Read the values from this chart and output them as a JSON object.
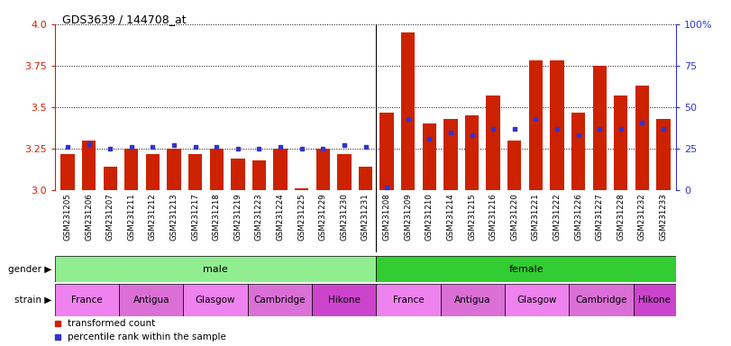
{
  "title": "GDS3639 / 144708_at",
  "samples": [
    "GSM231205",
    "GSM231206",
    "GSM231207",
    "GSM231211",
    "GSM231212",
    "GSM231213",
    "GSM231217",
    "GSM231218",
    "GSM231219",
    "GSM231223",
    "GSM231224",
    "GSM231225",
    "GSM231229",
    "GSM231230",
    "GSM231231",
    "GSM231208",
    "GSM231209",
    "GSM231210",
    "GSM231214",
    "GSM231215",
    "GSM231216",
    "GSM231220",
    "GSM231221",
    "GSM231222",
    "GSM231226",
    "GSM231227",
    "GSM231228",
    "GSM231232",
    "GSM231233"
  ],
  "red_values": [
    3.22,
    3.3,
    3.14,
    3.25,
    3.22,
    3.25,
    3.22,
    3.25,
    3.19,
    3.18,
    3.25,
    3.01,
    3.25,
    3.22,
    3.14,
    3.47,
    3.95,
    3.4,
    3.43,
    3.45,
    3.57,
    3.3,
    3.78,
    3.78,
    3.47,
    3.75,
    3.57,
    3.63,
    3.43
  ],
  "blue_values_pct": [
    26,
    28,
    25,
    26,
    26,
    27,
    26,
    26,
    25,
    25,
    26,
    25,
    25,
    27,
    26,
    2,
    43,
    31,
    35,
    33,
    37,
    37,
    43,
    37,
    33,
    37,
    37,
    41,
    37
  ],
  "gender_groups": [
    {
      "label": "male",
      "start": 0,
      "end": 15,
      "color": "#90EE90"
    },
    {
      "label": "female",
      "start": 15,
      "end": 29,
      "color": "#32CD32"
    }
  ],
  "strain_groups": [
    {
      "label": "France",
      "start": 0,
      "end": 3,
      "color": "#EE82EE"
    },
    {
      "label": "Antigua",
      "start": 3,
      "end": 6,
      "color": "#DA70D6"
    },
    {
      "label": "Glasgow",
      "start": 6,
      "end": 9,
      "color": "#EE82EE"
    },
    {
      "label": "Cambridge",
      "start": 9,
      "end": 12,
      "color": "#DA70D6"
    },
    {
      "label": "Hikone",
      "start": 12,
      "end": 15,
      "color": "#CC44CC"
    },
    {
      "label": "France",
      "start": 15,
      "end": 18,
      "color": "#EE82EE"
    },
    {
      "label": "Antigua",
      "start": 18,
      "end": 21,
      "color": "#DA70D6"
    },
    {
      "label": "Glasgow",
      "start": 21,
      "end": 24,
      "color": "#EE82EE"
    },
    {
      "label": "Cambridge",
      "start": 24,
      "end": 27,
      "color": "#DA70D6"
    },
    {
      "label": "Hikone",
      "start": 27,
      "end": 29,
      "color": "#CC44CC"
    }
  ],
  "ylim_left": [
    3.0,
    4.0
  ],
  "ylim_right": [
    0,
    100
  ],
  "yticks_left": [
    3.0,
    3.25,
    3.5,
    3.75,
    4.0
  ],
  "yticks_right": [
    0,
    25,
    50,
    75,
    100
  ],
  "ytick_labels_right": [
    "0",
    "25",
    "50",
    "75",
    "100%"
  ],
  "red_color": "#CC2200",
  "blue_color": "#3333CC",
  "bar_width": 0.65,
  "gender_label_color": "black",
  "strain_label_color": "black",
  "tick_bg_color": "#D8D8D8",
  "male_color": "#90EE90",
  "female_color": "#32CD32"
}
